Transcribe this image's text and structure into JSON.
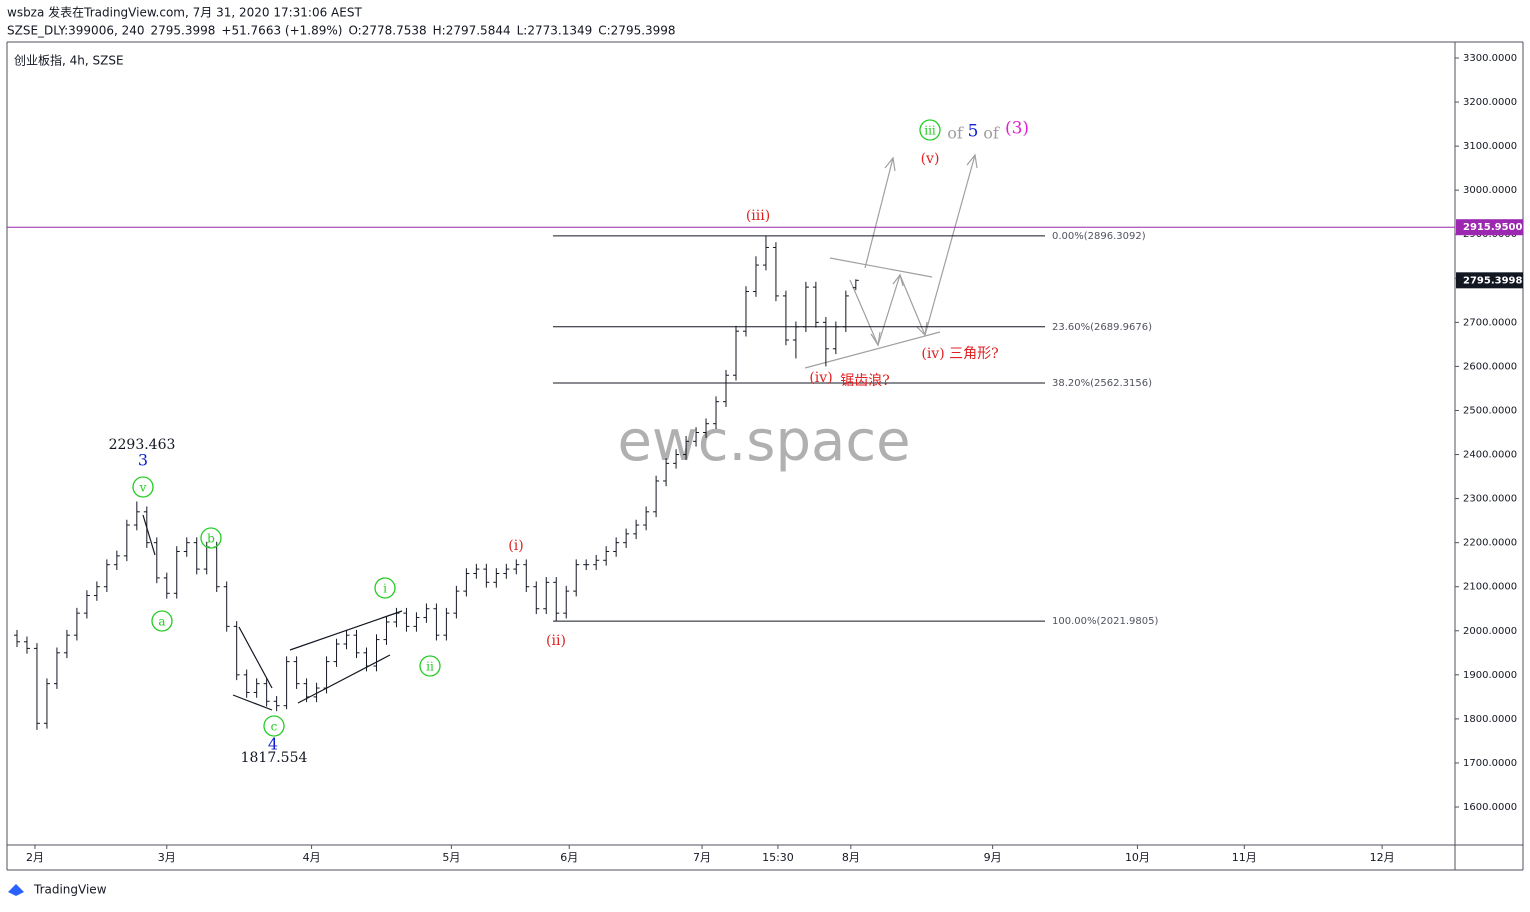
{
  "header": {
    "line1": "wsbza 发表在TradingView.com, 7月 31, 2020 17:31:06 AEST",
    "symbol": "SZSE_DLY:399006, 240",
    "price": "2795.3998",
    "change": "+51.7663 (+1.89%)",
    "ohlc": [
      {
        "label": "O:",
        "value": "2778.7538"
      },
      {
        "label": "H:",
        "value": "2797.5844"
      },
      {
        "label": "L:",
        "value": "2773.1349"
      },
      {
        "label": "C:",
        "value": "2795.3998"
      }
    ],
    "legend": "创业板指, 4h, SZSE"
  },
  "watermark": "ewc.space",
  "footer": "TradingView",
  "chart_data": {
    "type": "ohlc",
    "color": "#131722",
    "xlim": [
      -1,
      144
    ],
    "xticks": [
      {
        "value": 1.8,
        "label": "2月"
      },
      {
        "value": 15,
        "label": "3月"
      },
      {
        "value": 29.5,
        "label": "4月"
      },
      {
        "value": 43.5,
        "label": "5月"
      },
      {
        "value": 55.3,
        "label": "6月"
      },
      {
        "value": 68.6,
        "label": "7月"
      },
      {
        "value": 76.2,
        "label": "15:30"
      },
      {
        "value": 83.5,
        "label": "8月"
      },
      {
        "value": 97.7,
        "label": "9月"
      },
      {
        "value": 112.2,
        "label": "10月"
      },
      {
        "value": 122.9,
        "label": "11月"
      },
      {
        "value": 136.7,
        "label": "12月"
      }
    ],
    "ylim": [
      1513.8,
      3336.3
    ],
    "yticks": [
      {
        "value": 1600,
        "label": "1600.0000"
      },
      {
        "value": 1700,
        "label": "1700.0000"
      },
      {
        "value": 1800,
        "label": "1800.0000"
      },
      {
        "value": 1900,
        "label": "1900.0000"
      },
      {
        "value": 2000,
        "label": "2000.0000"
      },
      {
        "value": 2100,
        "label": "2100.0000"
      },
      {
        "value": 2200,
        "label": "2200.0000"
      },
      {
        "value": 2300,
        "label": "2300.0000"
      },
      {
        "value": 2400,
        "label": "2400.0000"
      },
      {
        "value": 2500,
        "label": "2500.0000"
      },
      {
        "value": 2600,
        "label": "2600.0000"
      },
      {
        "value": 2700,
        "label": "2700.0000"
      },
      {
        "value": 2800,
        "label": "2800.0000"
      },
      {
        "value": 2900,
        "label": "2900.0000"
      },
      {
        "value": 3000,
        "label": "3000.0000"
      },
      {
        "value": 3100,
        "label": "3100.0000"
      },
      {
        "value": 3200,
        "label": "3200.0000"
      },
      {
        "value": 3300,
        "label": "3300.0000"
      }
    ],
    "open": [
      1990,
      1975,
      1960,
      1790,
      1880,
      1950,
      1990,
      2040,
      2080,
      2100,
      2150,
      2170,
      2240,
      2270,
      2200,
      2120,
      2085,
      2180,
      2200,
      2140,
      2190,
      2100,
      2010,
      1900,
      1860,
      1880,
      1840,
      1830,
      1930,
      1880,
      1850,
      1870,
      1930,
      1970,
      1990,
      1950,
      1920,
      1980,
      2020,
      2040,
      2010,
      2030,
      2050,
      1990,
      2040,
      2090,
      2130,
      2140,
      2110,
      2130,
      2140,
      2150,
      2100,
      2050,
      2110,
      2040,
      2090,
      2150,
      2150,
      2160,
      2180,
      2200,
      2220,
      2240,
      2270,
      2340,
      2380,
      2400,
      2430,
      2450,
      2470,
      2520,
      2580,
      2680,
      2770,
      2830,
      2870,
      2760,
      2660,
      2690,
      2780,
      2700,
      2640,
      2690,
      2778.7538
    ],
    "high": [
      2002,
      1987,
      1972,
      1892,
      1962,
      2002,
      2052,
      2092,
      2112,
      2162,
      2182,
      2252,
      2293.463,
      2282,
      2212,
      2132,
      2192,
      2212,
      2212,
      2202,
      2202,
      2112,
      2022,
      1912,
      1892,
      1892,
      1852,
      1942,
      1942,
      1892,
      1882,
      1942,
      1982,
      2002,
      2002,
      1962,
      1992,
      2032,
      2052,
      2052,
      2042,
      2062,
      2062,
      2052,
      2102,
      2142,
      2152,
      2152,
      2142,
      2152,
      2162,
      2162,
      2112,
      2122,
      2122,
      2102,
      2162,
      2162,
      2172,
      2192,
      2212,
      2232,
      2252,
      2282,
      2352,
      2392,
      2412,
      2442,
      2462,
      2482,
      2532,
      2592,
      2692,
      2782,
      2850,
      2896.3092,
      2882,
      2772,
      2702,
      2792,
      2792,
      2712,
      2702,
      2772,
      2797.5844
    ],
    "low": [
      1963,
      1948,
      1775,
      1778,
      1868,
      1938,
      1978,
      2028,
      2068,
      2088,
      2138,
      2158,
      2228,
      2188,
      2108,
      2073,
      2073,
      2168,
      2128,
      2128,
      2088,
      1998,
      1888,
      1848,
      1848,
      1828,
      1817.554,
      1822,
      1868,
      1838,
      1838,
      1858,
      1918,
      1958,
      1938,
      1908,
      1908,
      1968,
      2008,
      1998,
      1998,
      2018,
      1978,
      1978,
      2028,
      2078,
      2118,
      2098,
      2098,
      2118,
      2128,
      2088,
      2038,
      2038,
      2021.9805,
      2028,
      2078,
      2138,
      2138,
      2148,
      2168,
      2188,
      2208,
      2228,
      2258,
      2328,
      2368,
      2388,
      2418,
      2438,
      2458,
      2508,
      2568,
      2668,
      2758,
      2818,
      2748,
      2648,
      2618,
      2678,
      2688,
      2600,
      2628,
      2678,
      2773.1349
    ],
    "close": [
      1975,
      1960,
      1790,
      1880,
      1950,
      1990,
      2040,
      2080,
      2100,
      2150,
      2170,
      2240,
      2270,
      2200,
      2120,
      2085,
      2180,
      2200,
      2140,
      2190,
      2100,
      2010,
      1900,
      1860,
      1880,
      1840,
      1830,
      1930,
      1880,
      1850,
      1870,
      1930,
      1970,
      1990,
      1950,
      1920,
      1980,
      2020,
      2040,
      2010,
      2030,
      2050,
      1990,
      2040,
      2090,
      2130,
      2140,
      2110,
      2130,
      2140,
      2150,
      2100,
      2050,
      2110,
      2040,
      2090,
      2150,
      2150,
      2160,
      2180,
      2200,
      2220,
      2240,
      2270,
      2340,
      2380,
      2400,
      2430,
      2450,
      2470,
      2520,
      2580,
      2680,
      2770,
      2830,
      2870,
      2760,
      2660,
      2690,
      2780,
      2700,
      2640,
      2690,
      2760,
      2795.3998
    ],
    "fib_color": "#131722",
    "fib_levels": [
      {
        "value": 2896.3092,
        "label": "0.00%(2896.3092)"
      },
      {
        "value": 2689.9676,
        "label": "23.60%(2689.9676)"
      },
      {
        "value": 2562.3156,
        "label": "38.20%(2562.3156)"
      },
      {
        "value": 2021.9805,
        "label": "100.00%(2021.9805)"
      }
    ],
    "hline": {
      "value": 2915.95,
      "label": "2915.9500",
      "color": "#9c27b0"
    },
    "last_price": {
      "value": 2795.3998,
      "label": "2795.3998",
      "color": "#131722"
    },
    "annotations": [
      {
        "text": "2293.463",
        "color": "#131722"
      },
      {
        "text": "3",
        "color": "#1020d0"
      },
      {
        "text": "v",
        "color": "#22cc22",
        "circled": true
      },
      {
        "text": "a",
        "color": "#22cc22",
        "circled": true
      },
      {
        "text": "b",
        "color": "#22cc22",
        "circled": true
      },
      {
        "text": "c",
        "color": "#22cc22",
        "circled": true
      },
      {
        "text": "4",
        "color": "#1020d0"
      },
      {
        "text": "1817.554",
        "color": "#131722"
      },
      {
        "text": "i",
        "color": "#22cc22",
        "circled": true
      },
      {
        "text": "ii",
        "color": "#22cc22",
        "circled": true
      },
      {
        "text": "(i)",
        "color": "#e02020"
      },
      {
        "text": "(ii)",
        "color": "#e02020"
      },
      {
        "text": "(iii)",
        "color": "#e02020"
      },
      {
        "text": "(iv)",
        "color": "#e02020"
      },
      {
        "text": "锯齿浪?",
        "color": "#e02020"
      },
      {
        "text": "(iv) 三角形?",
        "color": "#e02020"
      },
      {
        "text": "(v)",
        "color": "#e02020"
      },
      {
        "text": "iii",
        "color": "#22cc22",
        "circled": true
      },
      {
        "text": "of",
        "color": "#9e9e9e"
      },
      {
        "text": "5",
        "color": "#1020d0"
      },
      {
        "text": "of",
        "color": "#9e9e9e"
      },
      {
        "text": "(3)",
        "color": "#e020d0"
      }
    ]
  }
}
